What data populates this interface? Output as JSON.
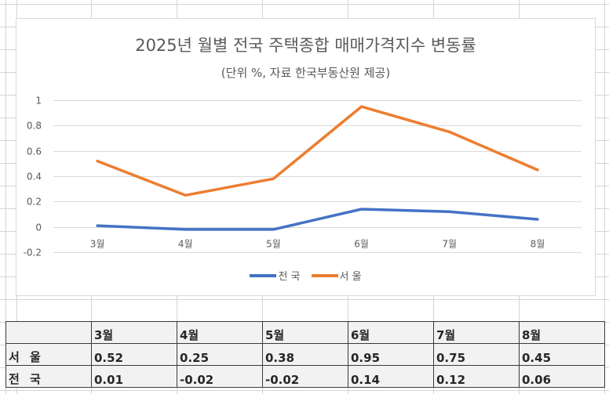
{
  "colors": {
    "seoul": "#ED7D31",
    "national": "#4472C4",
    "gridline": "#d9d9d9",
    "text": "#595959"
  },
  "chart_data": {
    "type": "line",
    "title": "2025년 월별 전국 주택종합 매매가격지수 변동률",
    "subtitle": "(단위 %, 자료 한국부동산원 제공)",
    "xlabel": "",
    "ylabel": "",
    "categories": [
      "3월",
      "4월",
      "5월",
      "6월",
      "7월",
      "8월"
    ],
    "series": [
      {
        "name": "전 국",
        "color": "#4472C4",
        "values": [
          0.01,
          -0.02,
          -0.02,
          0.14,
          0.12,
          0.06
        ]
      },
      {
        "name": "서 울",
        "color": "#ED7D31",
        "values": [
          0.52,
          0.25,
          0.38,
          0.95,
          0.75,
          0.45
        ]
      }
    ],
    "ylim": [
      -0.2,
      1
    ],
    "yticks": [
      1,
      0.8,
      0.6,
      0.4,
      0.2,
      0,
      -0.2
    ],
    "ytick_labels": [
      "1",
      "0.8",
      "0.6",
      "0.4",
      "0.2",
      "0",
      "-0.2"
    ],
    "grid": true,
    "legend": "bottom"
  },
  "table": {
    "header": [
      "",
      "3월",
      "4월",
      "5월",
      "6월",
      "7월",
      "8월"
    ],
    "rows": [
      {
        "label": "서 울",
        "values": [
          "0.52",
          "0.25",
          "0.38",
          "0.95",
          "0.75",
          "0.45"
        ]
      },
      {
        "label": "전 국",
        "values": [
          "0.01",
          "-0.02",
          "-0.02",
          "0.14",
          "0.12",
          "0.06"
        ]
      }
    ]
  }
}
